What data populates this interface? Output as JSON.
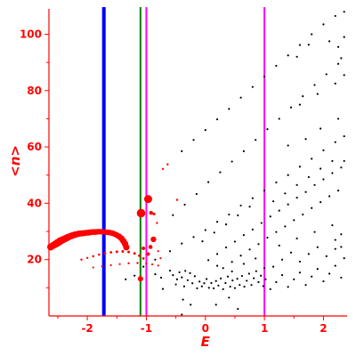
{
  "chart_data": {
    "type": "scatter",
    "xlabel": "E",
    "ylabel": "<n>",
    "xlim": [
      -2.65,
      2.4
    ],
    "ylim": [
      0,
      109
    ],
    "grid": false,
    "legend": "none",
    "x_ticks": [
      -2,
      -1,
      0,
      1,
      2
    ],
    "y_ticks": [
      20,
      40,
      60,
      80,
      100
    ],
    "axis_color": "#ff0000",
    "vertical_lines": [
      {
        "x": -1.72,
        "color": "#0000ff",
        "width": "thick"
      },
      {
        "x": -1.1,
        "color": "#008000",
        "width": "thin"
      },
      {
        "x": -1.0,
        "color": "#ff00ff",
        "width": "thin"
      },
      {
        "x": 1.0,
        "color": "#ff00ff",
        "width": "thin"
      }
    ],
    "series": [
      {
        "color": "#ff0000",
        "marker": "circle-sized",
        "points": [
          [
            -2.62,
            24.5,
            4
          ],
          [
            -2.58,
            25.0,
            4
          ],
          [
            -2.54,
            25.5,
            4.2
          ],
          [
            -2.5,
            26.0,
            4.3
          ],
          [
            -2.46,
            26.6,
            4.3
          ],
          [
            -2.42,
            27.0,
            4.2
          ],
          [
            -2.38,
            27.4,
            4
          ],
          [
            -2.34,
            27.8,
            4
          ],
          [
            -2.3,
            28.2,
            3.8
          ],
          [
            -2.26,
            28.5,
            3.8
          ],
          [
            -2.22,
            28.8,
            3.7
          ],
          [
            -2.18,
            29.0,
            3.6
          ],
          [
            -2.14,
            29.2,
            3.6
          ],
          [
            -2.1,
            29.3,
            3.5
          ],
          [
            -2.06,
            29.4,
            3.5
          ],
          [
            -2.02,
            29.5,
            3.4
          ],
          [
            -1.98,
            29.6,
            3.4
          ],
          [
            -1.94,
            29.7,
            3.4
          ],
          [
            -1.9,
            29.8,
            3.3
          ],
          [
            -1.86,
            29.8,
            3.3
          ],
          [
            -1.82,
            29.9,
            3.2
          ],
          [
            -1.78,
            29.9,
            3.2
          ],
          [
            -1.74,
            29.9,
            3.1
          ],
          [
            -1.7,
            29.8,
            3.1
          ],
          [
            -1.66,
            29.7,
            3.2
          ],
          [
            -1.62,
            29.6,
            3.2
          ],
          [
            -1.58,
            29.4,
            3.2
          ],
          [
            -1.54,
            29.1,
            3.2
          ],
          [
            -1.5,
            28.7,
            3.3
          ],
          [
            -1.46,
            28.2,
            3.4
          ],
          [
            -1.42,
            27.5,
            3.5
          ],
          [
            -1.39,
            26.6,
            3.6
          ],
          [
            -1.36,
            25.6,
            3.6
          ],
          [
            -1.34,
            24.4,
            3.6
          ],
          [
            -2.1,
            20.0,
            1.2
          ],
          [
            -2.0,
            20.6,
            1.2
          ],
          [
            -1.9,
            21.2,
            1.3
          ],
          [
            -1.8,
            21.8,
            1.3
          ],
          [
            -1.7,
            22.2,
            1.4
          ],
          [
            -1.6,
            22.6,
            1.4
          ],
          [
            -1.5,
            22.8,
            1.5
          ],
          [
            -1.4,
            22.9,
            1.5
          ],
          [
            -1.3,
            22.7,
            1.5
          ],
          [
            -1.2,
            22.2,
            1.5
          ],
          [
            -1.12,
            21.4,
            1.4
          ],
          [
            -1.05,
            20.4,
            1.4
          ],
          [
            -1.9,
            17.2,
            1.1
          ],
          [
            -1.75,
            17.6,
            1.1
          ],
          [
            -1.6,
            18.0,
            1.1
          ],
          [
            -1.45,
            18.4,
            1.1
          ],
          [
            -1.3,
            18.7,
            1.2
          ],
          [
            -1.15,
            18.8,
            1.2
          ],
          [
            -1.0,
            18.6,
            1.2
          ],
          [
            -0.9,
            18.3,
            1.1
          ],
          [
            -0.8,
            17.9,
            1.1
          ],
          [
            -1.09,
            36.5,
            4.8
          ],
          [
            -0.97,
            41.5,
            4.5
          ],
          [
            -0.92,
            36.6,
            2.2
          ],
          [
            -0.87,
            36.2,
            1.6
          ],
          [
            -0.88,
            27.2,
            3.2
          ],
          [
            -0.93,
            24.5,
            2.3
          ],
          [
            -1.05,
            24.0,
            2.0
          ],
          [
            -0.97,
            22.0,
            2.0
          ],
          [
            -1.1,
            13.2,
            3.0
          ],
          [
            -0.82,
            33.0,
            1.2
          ],
          [
            -0.72,
            52.2,
            1.2
          ],
          [
            -0.64,
            53.8,
            1.2
          ],
          [
            -0.48,
            41.2,
            1.2
          ],
          [
            -0.8,
            23.0,
            1.1
          ],
          [
            -0.76,
            20.5,
            1.1
          ]
        ]
      },
      {
        "color": "#000000",
        "marker": "dot",
        "points": [
          [
            -1.2,
            14.3
          ],
          [
            -1.35,
            13.0
          ],
          [
            -1.05,
            17.5
          ],
          [
            -0.85,
            14.8
          ],
          [
            -0.75,
            13.6
          ],
          [
            -0.72,
            9.6
          ],
          [
            -0.6,
            16.1
          ],
          [
            -0.55,
            14.5
          ],
          [
            -0.5,
            11.2
          ],
          [
            -0.48,
            13.0
          ],
          [
            -0.44,
            15.5
          ],
          [
            -0.4,
            13.7
          ],
          [
            -0.36,
            10.5
          ],
          [
            -0.34,
            16.0
          ],
          [
            -0.3,
            12.7
          ],
          [
            -0.26,
            15.2
          ],
          [
            -0.22,
            11.6
          ],
          [
            -0.18,
            14.1
          ],
          [
            -0.14,
            9.8
          ],
          [
            -0.1,
            12.2
          ],
          [
            -0.06,
            10.5
          ],
          [
            -0.02,
            11.6
          ],
          [
            0.02,
            13.1
          ],
          [
            0.06,
            10.0
          ],
          [
            0.1,
            11.7
          ],
          [
            0.14,
            9.8
          ],
          [
            0.18,
            12.4
          ],
          [
            0.22,
            10.8
          ],
          [
            0.26,
            13.3
          ],
          [
            0.3,
            9.5
          ],
          [
            0.34,
            11.7
          ],
          [
            0.38,
            14.0
          ],
          [
            0.42,
            10.4
          ],
          [
            0.46,
            12.6
          ],
          [
            0.5,
            9.9
          ],
          [
            0.54,
            13.2
          ],
          [
            0.58,
            11.0
          ],
          [
            0.62,
            14.2
          ],
          [
            0.66,
            10.4
          ],
          [
            0.7,
            12.5
          ],
          [
            0.74,
            15.0
          ],
          [
            0.78,
            11.0
          ],
          [
            0.82,
            13.4
          ],
          [
            0.86,
            15.9
          ],
          [
            0.9,
            12.0
          ],
          [
            0.94,
            14.3
          ],
          [
            0.98,
            10.6
          ],
          [
            1.02,
            13.0
          ],
          [
            -0.4,
            0.5
          ],
          [
            0.55,
            2.5
          ],
          [
            -0.38,
            5.8
          ],
          [
            0.18,
            4.0
          ],
          [
            0.4,
            6.5
          ],
          [
            -0.25,
            4.0
          ],
          [
            -0.85,
            20.0
          ],
          [
            -0.6,
            23.0
          ],
          [
            -0.4,
            25.7
          ],
          [
            -0.2,
            28.0
          ],
          [
            0.0,
            30.5
          ],
          [
            0.2,
            33.4
          ],
          [
            0.4,
            36.0
          ],
          [
            0.6,
            39.2
          ],
          [
            0.8,
            41.8
          ],
          [
            1.0,
            44.5
          ],
          [
            1.2,
            47.4
          ],
          [
            1.4,
            50.0
          ],
          [
            1.6,
            53.0
          ],
          [
            1.8,
            55.8
          ],
          [
            2.0,
            58.8
          ],
          [
            2.2,
            61.7
          ],
          [
            2.35,
            63.8
          ],
          [
            -0.55,
            35.8
          ],
          [
            -0.35,
            39.5
          ],
          [
            -0.15,
            43.3
          ],
          [
            0.05,
            47.5
          ],
          [
            0.25,
            51.0
          ],
          [
            0.45,
            54.8
          ],
          [
            0.65,
            58.5
          ],
          [
            0.85,
            62.5
          ],
          [
            1.05,
            66.3
          ],
          [
            1.25,
            70.0
          ],
          [
            1.45,
            74.0
          ],
          [
            1.65,
            78.0
          ],
          [
            1.85,
            82.0
          ],
          [
            2.05,
            85.8
          ],
          [
            2.25,
            89.5
          ],
          [
            -0.4,
            58.5
          ],
          [
            -0.2,
            62.5
          ],
          [
            0.0,
            66.0
          ],
          [
            0.2,
            69.8
          ],
          [
            0.4,
            73.5
          ],
          [
            0.6,
            77.5
          ],
          [
            0.8,
            81.3
          ],
          [
            1.0,
            85.0
          ],
          [
            1.2,
            88.8
          ],
          [
            1.4,
            92.5
          ],
          [
            1.6,
            96.2
          ],
          [
            1.8,
            100.0
          ],
          [
            2.0,
            103.5
          ],
          [
            2.2,
            106.5
          ],
          [
            2.35,
            108.0
          ],
          [
            0.05,
            19.8
          ],
          [
            0.2,
            22.0
          ],
          [
            0.35,
            24.3
          ],
          [
            0.5,
            26.4
          ],
          [
            0.65,
            28.7
          ],
          [
            0.8,
            30.7
          ],
          [
            0.95,
            33.0
          ],
          [
            1.1,
            35.3
          ],
          [
            1.25,
            37.4
          ],
          [
            1.4,
            39.6
          ],
          [
            1.55,
            42.0
          ],
          [
            1.7,
            44.0
          ],
          [
            1.85,
            46.5
          ],
          [
            2.0,
            48.5
          ],
          [
            2.15,
            50.7
          ],
          [
            2.3,
            52.7
          ],
          [
            -0.05,
            26.5
          ],
          [
            0.15,
            29.6
          ],
          [
            0.35,
            32.5
          ],
          [
            0.55,
            35.7
          ],
          [
            0.75,
            38.8
          ],
          [
            1.15,
            40.7
          ],
          [
            1.35,
            43.5
          ],
          [
            1.55,
            46.5
          ],
          [
            1.75,
            49.3
          ],
          [
            1.95,
            52.3
          ],
          [
            2.15,
            55.0
          ],
          [
            0.3,
            17.0
          ],
          [
            0.45,
            19.2
          ],
          [
            0.6,
            21.4
          ],
          [
            0.75,
            23.6
          ],
          [
            0.9,
            25.5
          ],
          [
            1.05,
            27.8
          ],
          [
            1.2,
            29.8
          ],
          [
            1.35,
            31.8
          ],
          [
            1.5,
            34.0
          ],
          [
            1.65,
            36.0
          ],
          [
            1.8,
            38.3
          ],
          [
            1.95,
            40.4
          ],
          [
            2.1,
            42.5
          ],
          [
            2.25,
            44.5
          ],
          [
            1.1,
            9.5
          ],
          [
            1.2,
            12.0
          ],
          [
            1.3,
            14.5
          ],
          [
            1.4,
            10.3
          ],
          [
            1.5,
            13.0
          ],
          [
            1.6,
            15.4
          ],
          [
            1.7,
            11.0
          ],
          [
            1.8,
            14.0
          ],
          [
            1.9,
            16.7
          ],
          [
            2.0,
            12.3
          ],
          [
            2.1,
            15.0
          ],
          [
            2.2,
            17.8
          ],
          [
            2.3,
            13.6
          ],
          [
            1.15,
            17.5
          ],
          [
            1.3,
            20.0
          ],
          [
            1.45,
            22.5
          ],
          [
            1.6,
            19.3
          ],
          [
            1.75,
            22.0
          ],
          [
            1.9,
            24.4
          ],
          [
            2.05,
            21.2
          ],
          [
            2.2,
            23.8
          ],
          [
            2.35,
            20.5
          ],
          [
            1.25,
            25.0
          ],
          [
            1.55,
            27.5
          ],
          [
            1.85,
            29.8
          ],
          [
            2.15,
            32.2
          ],
          [
            2.3,
            29.0
          ],
          [
            0.2,
            17.8
          ],
          [
            0.45,
            15.8
          ],
          [
            0.65,
            18.5
          ],
          [
            0.85,
            20.4
          ],
          [
            1.0,
            17.0
          ],
          [
            1.4,
            60.5
          ],
          [
            1.7,
            62.8
          ],
          [
            1.95,
            66.5
          ],
          [
            2.25,
            70.0
          ],
          [
            1.6,
            75.0
          ],
          [
            1.9,
            78.8
          ],
          [
            2.2,
            82.5
          ],
          [
            2.35,
            85.5
          ],
          [
            2.25,
            95.5
          ],
          [
            2.35,
            99.0
          ],
          [
            2.1,
            97.5
          ],
          [
            1.55,
            92.0
          ],
          [
            1.75,
            96.3
          ],
          [
            2.3,
            91.5
          ],
          [
            2.35,
            55.0
          ],
          [
            2.3,
            24.5
          ],
          [
            2.2,
            27.0
          ]
        ]
      }
    ]
  }
}
